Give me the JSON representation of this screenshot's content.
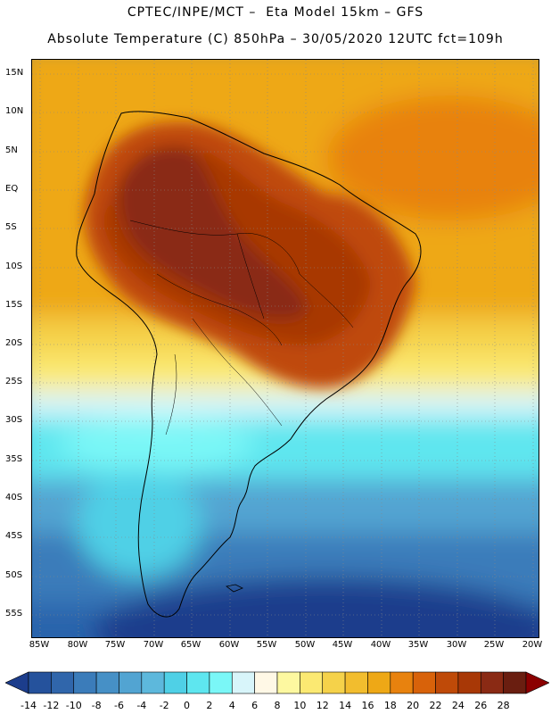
{
  "header": {
    "line1": "CPTEC/INPE/MCT –  Eta Model 15km – GFS",
    "line2": "Absolute Temperature (C) 850hPa – 30/05/2020 12UTC fct=109h"
  },
  "map": {
    "region": "South America",
    "variable": "Absolute Temperature (C)",
    "level": "850hPa",
    "lat_labels": [
      "15N",
      "10N",
      "5N",
      "EQ",
      "5S",
      "10S",
      "15S",
      "20S",
      "25S",
      "30S",
      "35S",
      "40S",
      "45S",
      "50S",
      "55S"
    ],
    "lon_labels": [
      "85W",
      "80W",
      "75W",
      "70W",
      "65W",
      "60W",
      "55W",
      "50W",
      "45W",
      "40W",
      "35W",
      "30W",
      "25W",
      "20W"
    ]
  },
  "legend": {
    "tick_labels": [
      "-14",
      "-12",
      "-10",
      "-8",
      "-6",
      "-4",
      "-2",
      "0",
      "2",
      "4",
      "6",
      "8",
      "10",
      "12",
      "14",
      "16",
      "18",
      "20",
      "22",
      "24",
      "26",
      "28"
    ],
    "colors": [
      "#1c3d8c",
      "#25529c",
      "#3066ab",
      "#3b7cba",
      "#4690c6",
      "#52a4d2",
      "#5db8dc",
      "#4fd0e6",
      "#5ee6ef",
      "#7af7f7",
      "#d8f5fa",
      "#fff8e6",
      "#fdf8a0",
      "#fbe972",
      "#f5d24a",
      "#f2bd2e",
      "#eea816",
      "#e8820e",
      "#d8620a",
      "#bf4a08",
      "#a83806",
      "#8a2a14",
      "#6a1e10",
      "#8b0000"
    ]
  }
}
